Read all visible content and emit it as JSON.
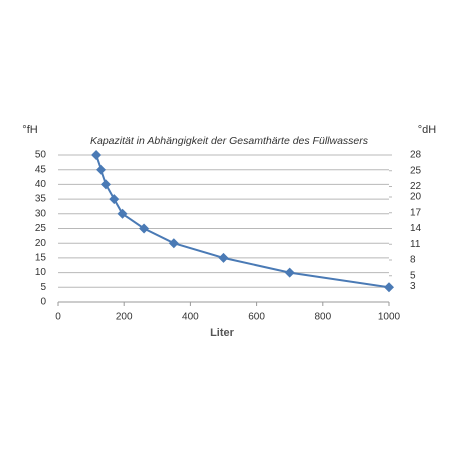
{
  "chart_data": {
    "type": "line",
    "title": "Kapazität in Abhängigkeit der Gesamthärte des Füllwassers",
    "x_label": "Liter",
    "y_label": "°fH",
    "y2_label": "°dH",
    "x": [
      115,
      130,
      145,
      170,
      195,
      260,
      350,
      500,
      700,
      1000
    ],
    "series": [
      {
        "name": "Kapazität",
        "color": "#4a7ab5",
        "values": [
          50,
          45,
          40,
          35,
          30,
          25,
          20,
          15,
          10,
          5
        ]
      }
    ],
    "xlim": [
      0,
      1000
    ],
    "xticks": [
      0,
      200,
      400,
      600,
      800,
      1000
    ],
    "ylim": [
      0,
      50
    ],
    "yticks": [
      0,
      5,
      10,
      15,
      20,
      25,
      30,
      35,
      40,
      45,
      50
    ],
    "y2lim": [
      0,
      28
    ],
    "y2ticks": [
      28,
      25,
      22,
      20,
      17,
      14,
      11,
      8,
      5,
      3
    ],
    "grid": true
  }
}
